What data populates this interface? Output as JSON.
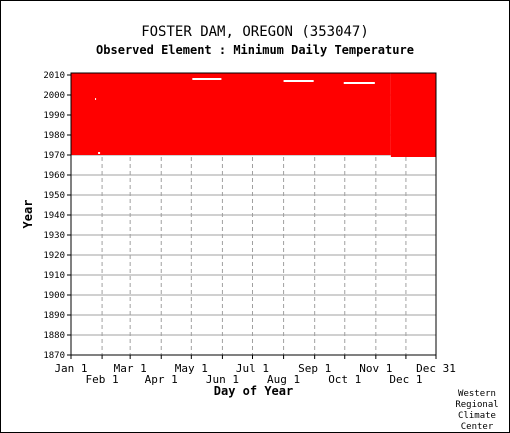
{
  "station_title": "FOSTER DAM, OREGON   (353047)",
  "element_title": "Observed Element : Minimum Daily Temperature",
  "credit": [
    "Western",
    "Regional",
    "Climate",
    "Center"
  ],
  "colors": {
    "data": "#ff0000",
    "grid": "#a0a0a0",
    "axis": "#000000"
  },
  "chart_data": {
    "type": "heatmap",
    "title": "FOSTER DAM, OREGON   (353047)",
    "subtitle": "Observed Element : Minimum Daily Temperature",
    "xlabel": "Day of Year",
    "ylabel": "Year",
    "xlim": [
      1,
      365
    ],
    "ylim": [
      1870,
      2011
    ],
    "y_ticks": [
      1870,
      1880,
      1890,
      1900,
      1910,
      1920,
      1930,
      1940,
      1950,
      1960,
      1970,
      1980,
      1990,
      2000,
      2010
    ],
    "x_ticks": [
      {
        "label": "Jan 1",
        "day": 1,
        "row": 1
      },
      {
        "label": "Feb 1",
        "day": 32,
        "row": 2
      },
      {
        "label": "Mar 1",
        "day": 60,
        "row": 1
      },
      {
        "label": "Apr 1",
        "day": 91,
        "row": 2
      },
      {
        "label": "May 1",
        "day": 121,
        "row": 1
      },
      {
        "label": "Jun 1",
        "day": 152,
        "row": 2
      },
      {
        "label": "Jul 1",
        "day": 182,
        "row": 1
      },
      {
        "label": "Aug 1",
        "day": 213,
        "row": 2
      },
      {
        "label": "Sep 1",
        "day": 244,
        "row": 1
      },
      {
        "label": "Oct 1",
        "day": 274,
        "row": 2
      },
      {
        "label": "Nov 1",
        "day": 305,
        "row": 1
      },
      {
        "label": "Dec 1",
        "day": 335,
        "row": 2
      },
      {
        "label": "Dec 31",
        "day": 365,
        "row": 1
      }
    ],
    "grid": true,
    "observed_periods": [
      {
        "start_day": 1,
        "end_day": 320,
        "start_year": 1970,
        "end_year": 2011
      },
      {
        "start_day": 320,
        "end_day": 365,
        "start_year": 1969,
        "end_year": 2011
      }
    ],
    "missing_periods": [
      {
        "start_day": 122,
        "end_day": 151,
        "year": 2008
      },
      {
        "start_day": 213,
        "end_day": 243,
        "year": 2007
      },
      {
        "start_day": 273,
        "end_day": 304,
        "year": 2006
      },
      {
        "start_day": 25,
        "end_day": 26,
        "year": 1998
      },
      {
        "start_day": 28,
        "end_day": 30,
        "year": 1971
      }
    ]
  }
}
